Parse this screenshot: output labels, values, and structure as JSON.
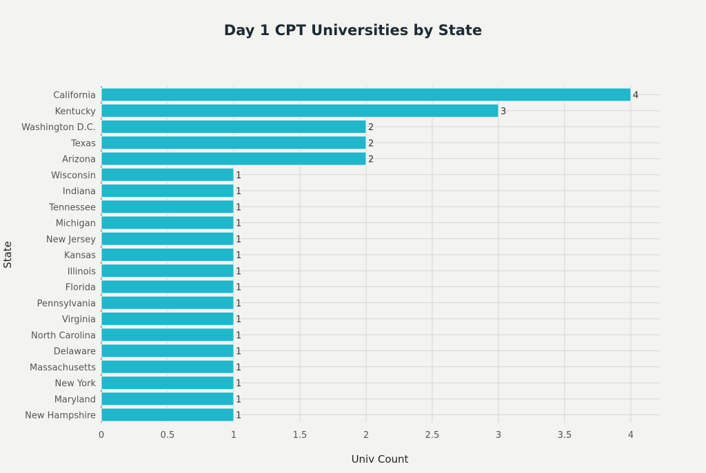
{
  "chart_data": {
    "type": "bar",
    "orientation": "horizontal",
    "title": "Day 1 CPT Universities by State",
    "xlabel": "Univ Count",
    "ylabel": "State",
    "xlim": [
      0,
      4.2
    ],
    "xticks": [
      0,
      0.5,
      1,
      1.5,
      2,
      2.5,
      3,
      3.5,
      4
    ],
    "xtick_labels": [
      "0",
      "0.5",
      "1",
      "1.5",
      "2",
      "2.5",
      "3",
      "3.5",
      "4"
    ],
    "grid": true,
    "bar_color": "#21b6cb",
    "categories": [
      "California",
      "Kentucky",
      "Washington D.C.",
      "Texas",
      "Arizona",
      "Wisconsin",
      "Indiana",
      "Tennessee",
      "Michigan",
      "New Jersey",
      "Kansas",
      "Illinois",
      "Florida",
      "Pennsylvania",
      "Virginia",
      "North Carolina",
      "Delaware",
      "Massachusetts",
      "New York",
      "Maryland",
      "New Hampshire"
    ],
    "values": [
      4,
      3,
      2,
      2,
      2,
      1,
      1,
      1,
      1,
      1,
      1,
      1,
      1,
      1,
      1,
      1,
      1,
      1,
      1,
      1,
      1
    ],
    "data_labels": [
      "4",
      "3",
      "2",
      "2",
      "2",
      "1",
      "1",
      "1",
      "1",
      "1",
      "1",
      "1",
      "1",
      "1",
      "1",
      "1",
      "1",
      "1",
      "1",
      "1",
      "1"
    ]
  }
}
